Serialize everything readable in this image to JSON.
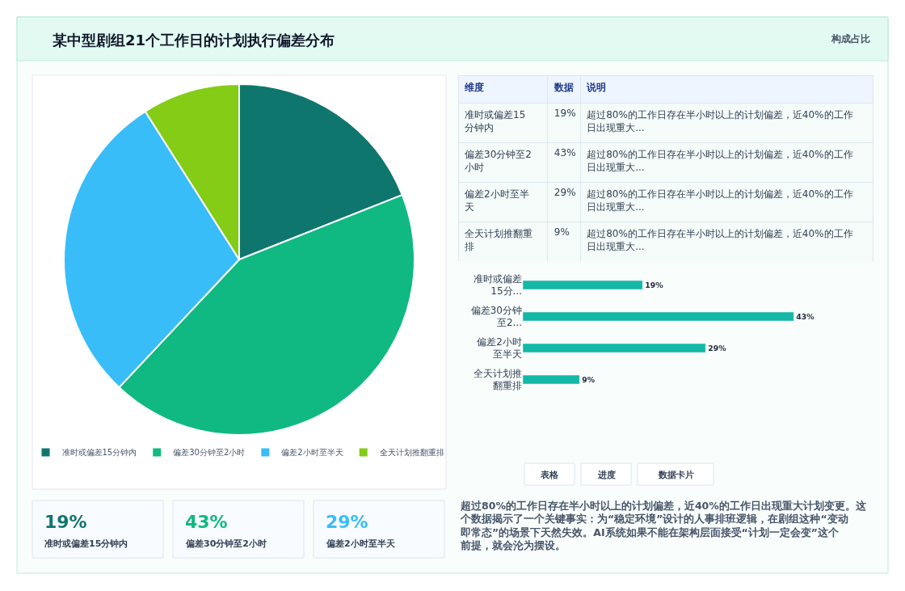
{
  "chart_data": [
    {
      "type": "pie",
      "title": "某中型剧组21个工作日的计划执行偏差分布",
      "categories": [
        "准时或偏差15分钟内",
        "偏差30分钟至2小时",
        "偏差2小时至半天",
        "全天计划推翻重排"
      ],
      "values": [
        19,
        43,
        29,
        9
      ],
      "colors": [
        "#0f766e",
        "#10b981",
        "#38bdf8",
        "#84cc16"
      ],
      "legend": "bottom"
    },
    {
      "type": "other",
      "categories": [
        "准时或偏差15分钟内",
        "偏差30分钟至2小时",
        "偏差2小时至半天",
        "全天计划推翻重排"
      ],
      "value_labels": [
        "19%",
        "43%",
        "29%",
        "9%"
      ],
      "annotations": [
        "维度",
        "数据",
        "说明",
        "超过80%的工作日存在半小时以上的计划偏差，近40%的工作日出现重大...",
        "超过80%的工作日存在半小时以上的计划偏差，近40%的工作日出现重大...",
        "超过80%的工作日存在半小时以上的计划偏差，近40%的工作日出现重大...",
        "超过80%的工作日存在半小时以上的计划偏差，近40%的工作日出现重大..."
      ]
    },
    {
      "type": "bar",
      "orientation": "horizontal",
      "categories": [
        "准时或偏差15分...",
        "偏差30分钟至2...",
        "偏差2小时至半天",
        "全天计划推翻重排"
      ],
      "values": [
        19,
        43,
        29,
        9
      ],
      "value_labels": [
        "19%",
        "43%",
        "29%",
        "9%"
      ],
      "color": "#14b8a6",
      "tick_labels": "y"
    },
    {
      "type": "other",
      "categories": [
        "准时或偏差15分钟内",
        "偏差30分钟至2小时",
        "偏差2小时至半天"
      ],
      "value_labels": [
        "19%",
        "43%",
        "29%"
      ],
      "colors": [
        "#0f766e",
        "#10b981",
        "#38bdf8"
      ]
    },
    {
      "type": "other",
      "annotations": [
        "构成占比",
        "表格",
        "进度",
        "数据卡片",
        "超过80%的工作日存在半小时以上的计划偏差，近40%的工作日出现重大计划变更。这个数据揭示了一个关键事实：为“稳定环境”设计的人事排班逻辑，在剧组这种“变动即常态”的场景下天然失效。AI系统如果不能在架构层面接受“计划一定会变”这个前提，就会沦为摆设。"
      ]
    }
  ]
}
